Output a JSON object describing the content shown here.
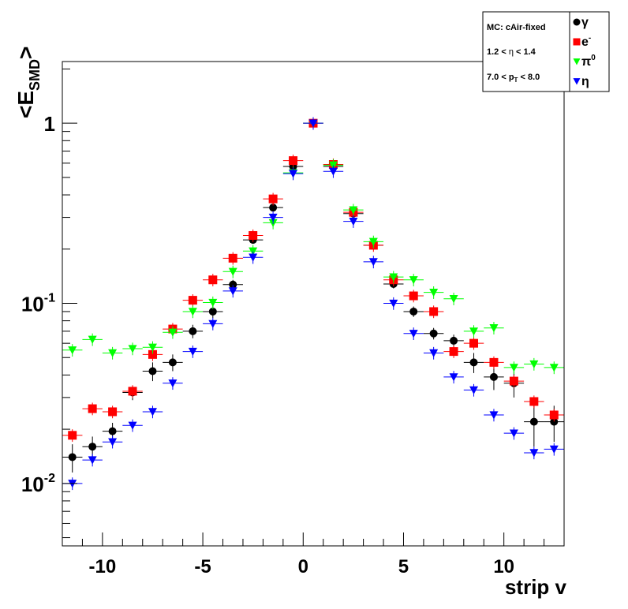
{
  "chart_data": {
    "type": "scatter",
    "ylabel": "<E",
    "ylabel_sub": "SMD",
    "ylabel_end": ">",
    "xlabel": "strip v",
    "xlim": [
      -12,
      13
    ],
    "ylim": [
      0.0045,
      2.2
    ],
    "y_scale": "log",
    "grid": false,
    "legend_position": "top-right",
    "legend_info": {
      "mc": "MC: cAir-fixed",
      "eta_prefix": "1.2 < ",
      "eta_symbol": "η",
      "eta_suffix": " < 1.4",
      "pt_prefix": "7.0 < p",
      "pt_sub": "T",
      "pt_suffix": " < 8.0"
    },
    "x_ticks": [
      {
        "value": -10,
        "label": "-10"
      },
      {
        "value": -5,
        "label": "-5"
      },
      {
        "value": 0,
        "label": "0"
      },
      {
        "value": 5,
        "label": "5"
      },
      {
        "value": 10,
        "label": "10"
      }
    ],
    "y_ticks": [
      {
        "value": 0.01,
        "label_base": "10",
        "label_exp": "-2"
      },
      {
        "value": 0.1,
        "label_base": "10",
        "label_exp": "-1"
      },
      {
        "value": 1,
        "label_base": "1",
        "label_exp": ""
      }
    ],
    "x": [
      -11.5,
      -10.5,
      -9.5,
      -8.5,
      -7.5,
      -6.5,
      -5.5,
      -4.5,
      -3.5,
      -2.5,
      -1.5,
      -0.5,
      0.5,
      1.5,
      2.5,
      3.5,
      4.5,
      5.5,
      6.5,
      7.5,
      8.5,
      9.5,
      10.5,
      11.5,
      12.5
    ],
    "series": [
      {
        "name": "γ",
        "legend_sup": "",
        "marker": "circle",
        "color": "#000000",
        "values": [
          0.014,
          0.016,
          0.0195,
          0.032,
          0.042,
          0.047,
          0.07,
          0.09,
          0.127,
          0.225,
          0.34,
          0.575,
          1.0,
          0.575,
          0.315,
          0.21,
          0.128,
          0.09,
          0.068,
          0.062,
          0.047,
          0.039,
          0.036,
          0.022,
          0.022
        ],
        "errors": [
          0.0025,
          0.0022,
          0.0022,
          0.003,
          0.005,
          0.005,
          0.006,
          0.007,
          0.008,
          0.01,
          0.012,
          0.015,
          0.015,
          0.015,
          0.01,
          0.009,
          0.007,
          0.006,
          0.005,
          0.005,
          0.006,
          0.006,
          0.006,
          0.006,
          0.005
        ]
      },
      {
        "name": "e",
        "legend_sup": "-",
        "marker": "square",
        "color": "#ff0000",
        "values": [
          0.0185,
          0.026,
          0.025,
          0.0325,
          0.052,
          0.072,
          0.104,
          0.135,
          0.178,
          0.238,
          0.38,
          0.62,
          1.0,
          0.59,
          0.32,
          0.21,
          0.135,
          0.11,
          0.09,
          0.054,
          0.06,
          0.047,
          0.037,
          0.0285,
          0.024
        ]
      },
      {
        "name": "π",
        "legend_sup": "0",
        "marker": "triangle-down",
        "color": "#00ff00",
        "values": [
          0.055,
          0.063,
          0.053,
          0.056,
          0.057,
          0.069,
          0.09,
          0.101,
          0.15,
          0.195,
          0.28,
          0.53,
          1.0,
          0.585,
          0.33,
          0.22,
          0.14,
          0.135,
          0.115,
          0.106,
          0.07,
          0.073,
          0.044,
          0.046,
          0.044
        ]
      },
      {
        "name": "η",
        "legend_sup": "",
        "marker": "triangle-down",
        "color": "#0000ff",
        "values": [
          0.01,
          0.0135,
          0.017,
          0.021,
          0.025,
          0.036,
          0.054,
          0.077,
          0.117,
          0.18,
          0.3,
          0.525,
          1.0,
          0.54,
          0.285,
          0.17,
          0.1,
          0.068,
          0.053,
          0.039,
          0.033,
          0.024,
          0.019,
          0.0148,
          0.0155
        ]
      }
    ]
  }
}
